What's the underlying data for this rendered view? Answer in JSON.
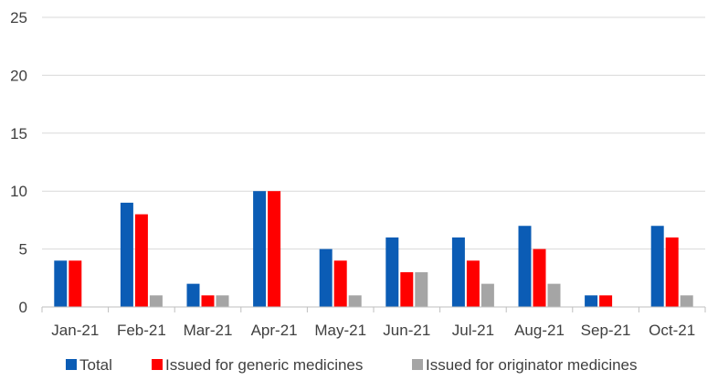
{
  "chart_data": {
    "type": "bar",
    "title": "",
    "xlabel": "",
    "ylabel": "",
    "ylim": [
      0,
      25
    ],
    "yticks": [
      0,
      5,
      10,
      15,
      20,
      25
    ],
    "grid": true,
    "legend_position": "bottom",
    "categories": [
      "Jan-21",
      "Feb-21",
      "Mar-21",
      "Apr-21",
      "May-21",
      "Jun-21",
      "Jul-21",
      "Aug-21",
      "Sep-21",
      "Oct-21"
    ],
    "series": [
      {
        "name": "Total",
        "color": "#0B5CB5",
        "values": [
          4,
          9,
          2,
          10,
          5,
          6,
          6,
          7,
          1,
          7
        ]
      },
      {
        "name": "Issued for generic medicines",
        "color": "#FF0000",
        "values": [
          4,
          8,
          1,
          10,
          4,
          3,
          4,
          5,
          1,
          6
        ]
      },
      {
        "name": "Issued for originator medicines",
        "color": "#A5A5A5",
        "values": [
          0,
          1,
          1,
          0,
          1,
          3,
          2,
          2,
          0,
          1
        ]
      }
    ]
  }
}
